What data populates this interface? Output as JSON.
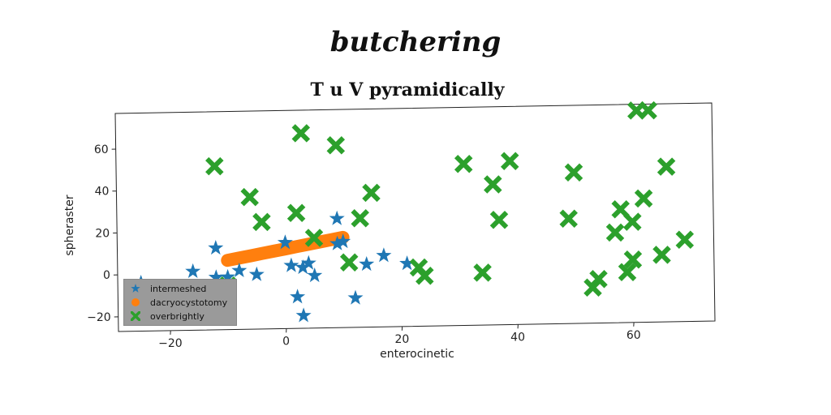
{
  "page_title": "butchering",
  "chart_data": {
    "type": "scatter",
    "title": "T u V pyramidically",
    "xlabel": "enterocinetic",
    "ylabel": "spheraster",
    "xlim": [
      -29,
      74
    ],
    "ylim": [
      -27,
      77
    ],
    "xticks": [
      -20,
      0,
      20,
      40,
      60
    ],
    "yticks": [
      -20,
      0,
      20,
      40,
      60
    ],
    "xtick_labels": [
      "−20",
      "0",
      "20",
      "40",
      "60"
    ],
    "ytick_labels": [
      "−20",
      "0",
      "20",
      "40",
      "60"
    ],
    "grid": false,
    "legend_position": "lower-left",
    "series": [
      {
        "name": "intermeshed",
        "marker": "star",
        "color": "#1f77b4",
        "points": [
          [
            -25,
            -4
          ],
          [
            -16,
            1
          ],
          [
            -12,
            -2
          ],
          [
            -12,
            12
          ],
          [
            -10,
            -2
          ],
          [
            -8,
            1
          ],
          [
            -5,
            -1
          ],
          [
            0,
            14
          ],
          [
            1,
            3
          ],
          [
            2,
            -12
          ],
          [
            3,
            -21
          ],
          [
            3,
            2
          ],
          [
            4,
            4
          ],
          [
            5,
            -2
          ],
          [
            9,
            25
          ],
          [
            9,
            13
          ],
          [
            10,
            14
          ],
          [
            12,
            -13
          ],
          [
            14,
            3
          ],
          [
            17,
            7
          ],
          [
            21,
            3
          ]
        ]
      },
      {
        "name": "dacryocystotomy",
        "marker": "line",
        "color": "#ff7f0e",
        "points": [
          [
            -10,
            6
          ],
          [
            -8,
            7
          ],
          [
            -6,
            8
          ],
          [
            -4,
            9
          ],
          [
            -2,
            10
          ],
          [
            0,
            11
          ],
          [
            2,
            12
          ],
          [
            4,
            13
          ],
          [
            6,
            14
          ],
          [
            8,
            15
          ],
          [
            10,
            16
          ]
        ]
      },
      {
        "name": "overbrightly",
        "marker": "x",
        "color": "#2ca02c",
        "points": [
          [
            -12,
            51
          ],
          [
            -10,
            -6
          ],
          [
            -6,
            36
          ],
          [
            -4,
            24
          ],
          [
            2,
            28
          ],
          [
            3,
            66
          ],
          [
            5,
            16
          ],
          [
            9,
            60
          ],
          [
            11,
            4
          ],
          [
            13,
            25
          ],
          [
            15,
            37
          ],
          [
            23,
            1
          ],
          [
            24,
            -3
          ],
          [
            31,
            50
          ],
          [
            34,
            -2
          ],
          [
            36,
            40
          ],
          [
            37,
            23
          ],
          [
            39,
            51
          ],
          [
            49,
            23
          ],
          [
            50,
            45
          ],
          [
            53,
            -10
          ],
          [
            54,
            -6
          ],
          [
            57,
            16
          ],
          [
            58,
            27
          ],
          [
            59,
            -3
          ],
          [
            60,
            3
          ],
          [
            60,
            21
          ],
          [
            61,
            74
          ],
          [
            62,
            32
          ],
          [
            63,
            74
          ],
          [
            65,
            5
          ],
          [
            66,
            47
          ],
          [
            69,
            12
          ]
        ]
      }
    ]
  }
}
